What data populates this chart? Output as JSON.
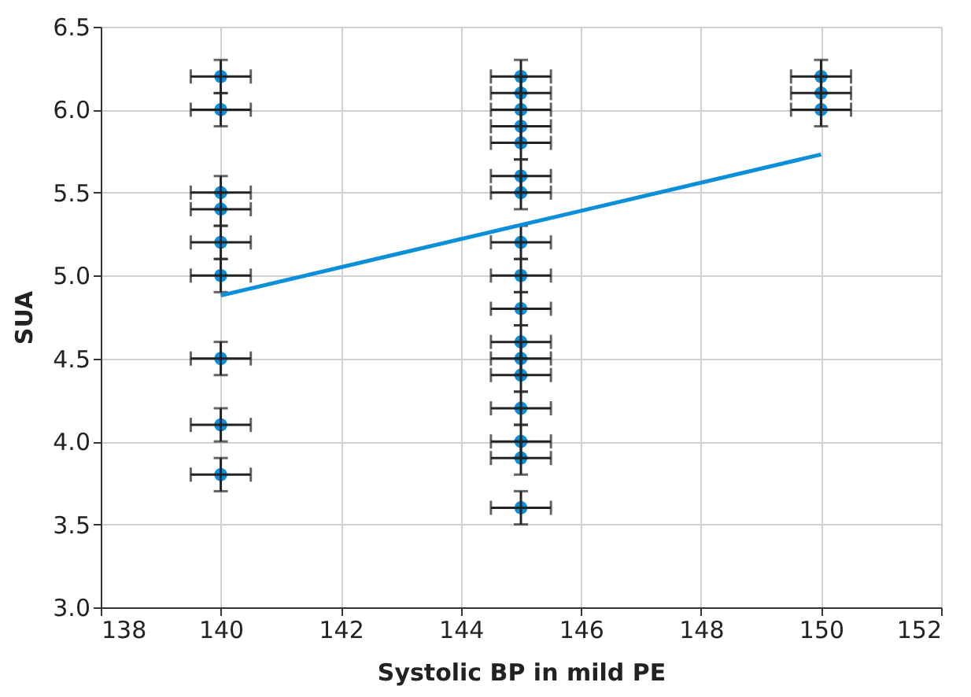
{
  "chart_data": {
    "type": "scatter",
    "xlabel": "Systolic BP in mild PE",
    "ylabel": "SUA",
    "xlim": [
      138,
      152
    ],
    "xticks": [
      138,
      140,
      142,
      144,
      146,
      148,
      150,
      152
    ],
    "ylim": [
      3.0,
      6.5
    ],
    "yticks": [
      {
        "value": 3.0,
        "label": "3.0"
      },
      {
        "value": 3.5,
        "label": "3.5"
      },
      {
        "value": 4.0,
        "label": "4.0"
      },
      {
        "value": 4.5,
        "label": "4.5"
      },
      {
        "value": 5.0,
        "label": "5.0"
      },
      {
        "value": 5.5,
        "label": "5.5"
      },
      {
        "value": 6.0,
        "label": "6.0"
      },
      {
        "value": 6.5,
        "label": "6.5"
      }
    ],
    "grid": true,
    "series": [
      {
        "color": "#0a8fd8",
        "marker": "circle",
        "x": [
          140,
          140,
          140,
          140,
          140,
          140,
          140,
          140,
          140,
          145,
          145,
          145,
          145,
          145,
          145,
          145,
          145,
          145,
          145,
          145,
          145,
          145,
          145,
          145,
          145,
          145,
          150,
          150,
          150
        ],
        "values": [
          6.2,
          6.0,
          5.5,
          5.4,
          5.2,
          5.0,
          4.5,
          4.1,
          3.8,
          6.2,
          6.1,
          6.0,
          5.9,
          5.8,
          5.6,
          5.5,
          5.2,
          5.0,
          4.8,
          4.6,
          4.5,
          4.4,
          4.2,
          4.0,
          3.9,
          3.6,
          6.2,
          6.1,
          6.0
        ],
        "errors": [
          0.1,
          0.1,
          0.1,
          0.1,
          0.1,
          0.1,
          0.1,
          0.1,
          0.1,
          0.1,
          0.1,
          0.1,
          0.1,
          0.1,
          0.1,
          0.1,
          0.1,
          0.1,
          0.1,
          0.1,
          0.1,
          0.1,
          0.1,
          0.1,
          0.1,
          0.1,
          0.1,
          0.1,
          0.1
        ],
        "xerrors": [
          0.5,
          0.5,
          0.5,
          0.5,
          0.5,
          0.5,
          0.5,
          0.5,
          0.5,
          0.5,
          0.5,
          0.5,
          0.5,
          0.5,
          0.5,
          0.5,
          0.5,
          0.5,
          0.5,
          0.5,
          0.5,
          0.5,
          0.5,
          0.5,
          0.5,
          0.5,
          0.5,
          0.5,
          0.5
        ]
      },
      {
        "type": "line",
        "color": "#0a8fd8",
        "line_style": "solid",
        "x": [
          140,
          150
        ],
        "values": [
          4.88,
          5.73
        ]
      }
    ]
  }
}
